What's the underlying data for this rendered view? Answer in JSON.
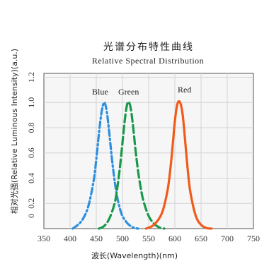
{
  "chart_data": {
    "type": "line",
    "title": "光谱分布特性曲线",
    "subtitle": "Relative Spectral Distribution",
    "xlabel": "波长(Wavelength)(nm)",
    "ylabel": "相对光强(Relative Luminous Intensity)(a.u.)",
    "xlim": [
      350,
      750
    ],
    "ylim": [
      0,
      1.2
    ],
    "x_ticks": [
      "350",
      "400",
      "450",
      "500",
      "550",
      "600",
      "650",
      "700",
      "750"
    ],
    "y_ticks": [
      "0",
      "0.2",
      "0.4",
      "0.6",
      "0.8",
      "1.0",
      "1.2"
    ],
    "grid": true,
    "series": [
      {
        "name": "Blue",
        "color": "#2d8fe0",
        "style": "dash-dot",
        "x": [
          405,
          415,
          425,
          435,
          445,
          450,
          455,
          460,
          465,
          470,
          475,
          480,
          485,
          490,
          495,
          500,
          510,
          520,
          530
        ],
        "y": [
          0.0,
          0.03,
          0.08,
          0.18,
          0.38,
          0.55,
          0.75,
          0.92,
          1.0,
          0.93,
          0.75,
          0.55,
          0.38,
          0.25,
          0.16,
          0.1,
          0.04,
          0.01,
          0.0
        ]
      },
      {
        "name": "Green",
        "color": "#17994a",
        "style": "dashed",
        "x": [
          455,
          465,
          475,
          485,
          490,
          495,
          500,
          505,
          510,
          515,
          520,
          525,
          530,
          535,
          540,
          550,
          560,
          570,
          580
        ],
        "y": [
          0.0,
          0.02,
          0.08,
          0.2,
          0.32,
          0.48,
          0.68,
          0.88,
          1.0,
          0.97,
          0.82,
          0.62,
          0.45,
          0.32,
          0.22,
          0.1,
          0.04,
          0.01,
          0.0
        ]
      },
      {
        "name": "Red",
        "color": "#f05a1a",
        "style": "solid",
        "x": [
          545,
          560,
          575,
          585,
          590,
          595,
          600,
          605,
          610,
          615,
          620,
          625,
          630,
          640,
          650,
          660,
          670
        ],
        "y": [
          0.0,
          0.03,
          0.12,
          0.28,
          0.42,
          0.62,
          0.85,
          0.99,
          1.0,
          0.9,
          0.68,
          0.45,
          0.28,
          0.1,
          0.03,
          0.005,
          0.0
        ]
      }
    ]
  }
}
